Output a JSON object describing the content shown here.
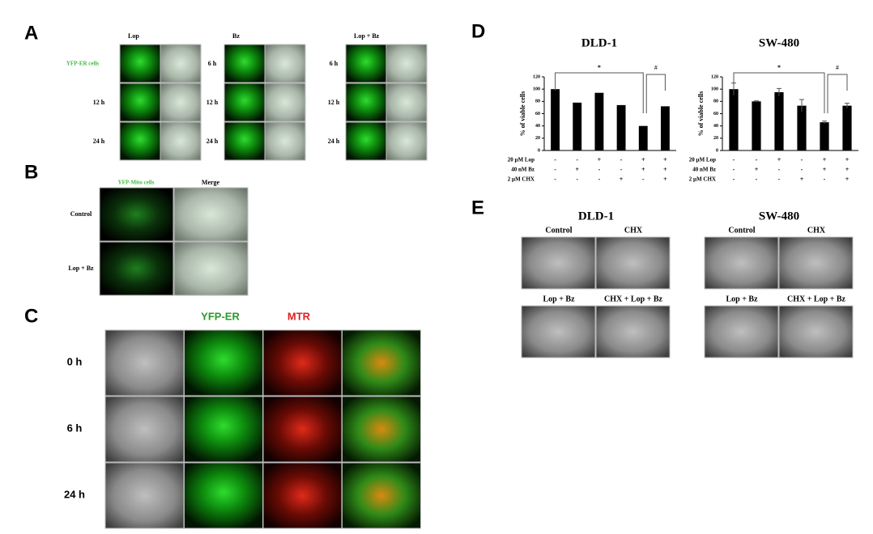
{
  "panel_a": {
    "label": "A",
    "groups": [
      {
        "header": "Lop",
        "rows": [
          "YFP-ER cells",
          "12 h",
          "24 h"
        ]
      },
      {
        "header": "Bz",
        "rows": [
          "6 h",
          "12 h",
          "24 h"
        ]
      },
      {
        "header": "Lop + Bz",
        "rows": [
          "6 h",
          "12 h",
          "24 h"
        ]
      }
    ]
  },
  "panel_b": {
    "label": "B",
    "columns": [
      "YFP-Mito cells",
      "Merge"
    ],
    "rows": [
      "Control",
      "Lop + Bz"
    ]
  },
  "panel_c": {
    "label": "C",
    "columns": [
      "YFP-ER",
      "MTR"
    ],
    "rows": [
      "0 h",
      "6 h",
      "24 h"
    ]
  },
  "panel_d": {
    "label": "D"
  },
  "chart_data": [
    {
      "type": "bar",
      "title": "DLD-1",
      "y_label": "% of viable cells",
      "color": "#000000",
      "values": [
        100,
        78,
        94,
        74,
        40,
        72
      ],
      "ylim": [
        0,
        120
      ],
      "yticks": [
        0,
        20,
        40,
        60,
        80,
        100,
        120
      ],
      "treatments": [
        {
          "name": "20 µM Lop",
          "signs": [
            "-",
            "-",
            "+",
            "-",
            "+",
            "+"
          ]
        },
        {
          "name": "40 nM Bz",
          "signs": [
            "-",
            "+",
            "-",
            "-",
            "+",
            "+"
          ]
        },
        {
          "name": "2 µM CHX",
          "signs": [
            "-",
            "-",
            "-",
            "+",
            "-",
            "+"
          ]
        }
      ],
      "annotations": [
        "*",
        "#"
      ]
    },
    {
      "type": "bar",
      "title": "SW-480",
      "y_label": "% of viable cells",
      "color": "#000000",
      "values": [
        100,
        80,
        95,
        73,
        46,
        73
      ],
      "errors": [
        10,
        1,
        6,
        10,
        2,
        4
      ],
      "ylim": [
        0,
        120
      ],
      "yticks": [
        0,
        20,
        40,
        60,
        80,
        100,
        120
      ],
      "treatments": [
        {
          "name": "20 µM Lop",
          "signs": [
            "-",
            "-",
            "+",
            "-",
            "+",
            "+"
          ]
        },
        {
          "name": "40 nM Bz",
          "signs": [
            "-",
            "+",
            "-",
            "-",
            "+",
            "+"
          ]
        },
        {
          "name": "2 µM CHX",
          "signs": [
            "-",
            "-",
            "-",
            "+",
            "-",
            "+"
          ]
        }
      ],
      "annotations": [
        "*",
        "#"
      ]
    }
  ],
  "panel_e": {
    "label": "E",
    "groups": [
      {
        "title": "DLD-1",
        "labels": [
          "Control",
          "CHX",
          "Lop + Bz",
          "CHX + Lop + Bz"
        ]
      },
      {
        "title": "SW-480",
        "labels": [
          "Control",
          "CHX",
          "Lop + Bz",
          "CHX + Lop + Bz"
        ]
      }
    ]
  }
}
